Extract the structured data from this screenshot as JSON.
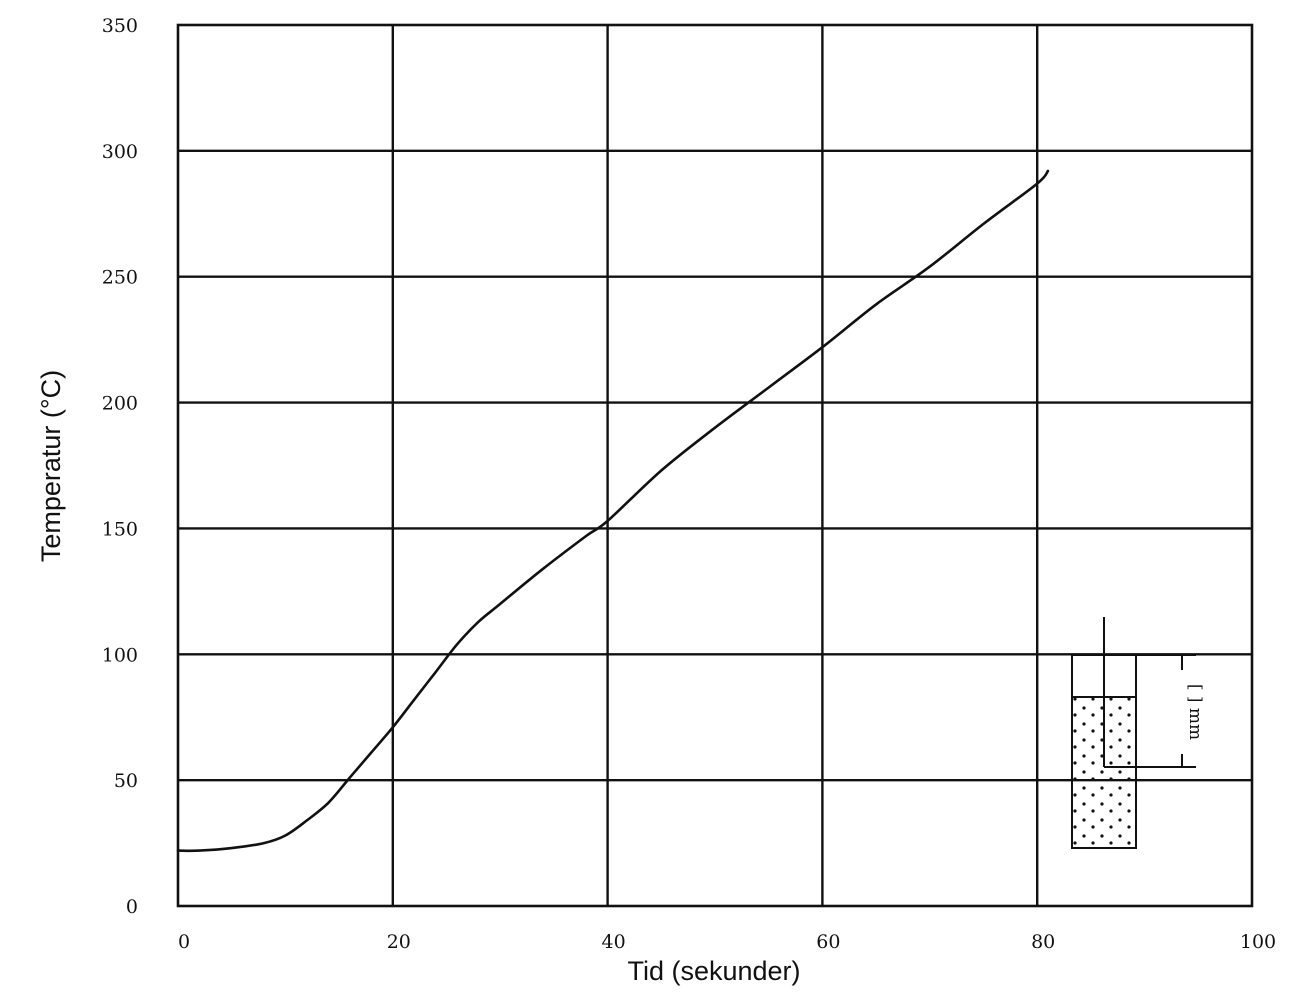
{
  "chart_data": {
    "type": "line",
    "title": "",
    "xlabel": "Tid (sekunder)",
    "ylabel": "Temperatur (°C)",
    "xlim": [
      0,
      100
    ],
    "ylim": [
      0,
      350
    ],
    "xticks": [
      "0",
      "20",
      "40",
      "60",
      "80",
      "100"
    ],
    "yticks": [
      "0",
      "50",
      "100",
      "150",
      "200",
      "250",
      "300",
      "350"
    ],
    "grid": true,
    "series": [
      {
        "x": [
          0,
          2,
          5,
          8,
          10,
          12,
          14,
          16,
          18,
          20,
          22,
          24,
          26,
          28,
          30,
          34,
          38,
          40,
          45,
          50,
          55,
          60,
          65,
          70,
          75,
          80,
          81
        ],
        "y": [
          22,
          22,
          23,
          25,
          28,
          34,
          41,
          51,
          61,
          71,
          82,
          93,
          104,
          113,
          120,
          134,
          147,
          153,
          173,
          190,
          206,
          222,
          239,
          254,
          271,
          287,
          292
        ]
      }
    ],
    "inset": {
      "icon": "cup-with-thermometer-icon",
      "label": "[ ] mm"
    }
  }
}
